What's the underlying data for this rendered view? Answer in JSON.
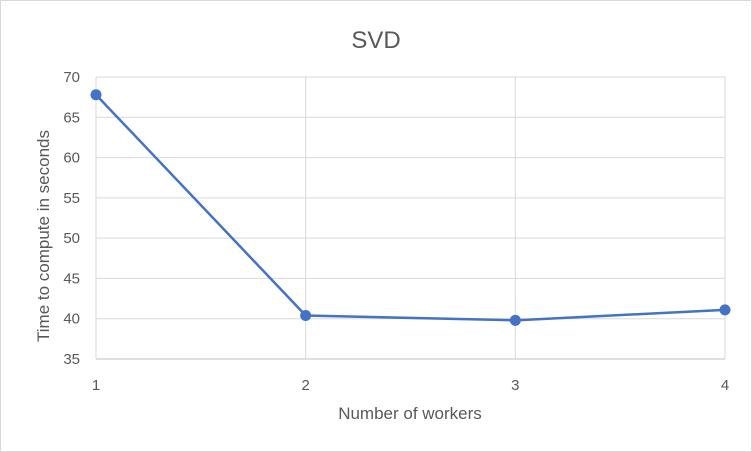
{
  "chart_data": {
    "type": "line",
    "title": "SVD",
    "xlabel": "Number of workers",
    "ylabel": "Time to compute in seconds",
    "x": [
      1,
      2,
      3,
      4
    ],
    "x_tick_labels": [
      "1",
      "2",
      "3",
      "4"
    ],
    "y_tick_labels": [
      "35",
      "40",
      "45",
      "50",
      "55",
      "60",
      "65",
      "70"
    ],
    "ylim": [
      35,
      70
    ],
    "xlim": [
      1,
      4
    ],
    "grid": true,
    "legend": "none",
    "series": [
      {
        "values": [
          67.8,
          40.4,
          39.8,
          41.1
        ],
        "color": "#4472c4"
      }
    ]
  }
}
